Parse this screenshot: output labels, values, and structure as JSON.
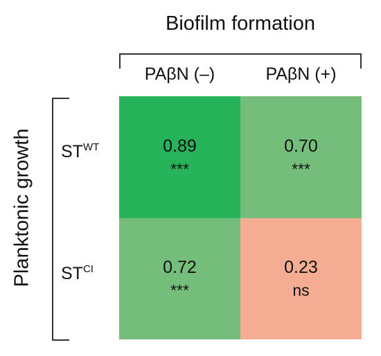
{
  "chart_data": {
    "type": "heatmap",
    "title": "Biofilm formation",
    "ylabel": "Planktonic growth",
    "columns": [
      "PAβN (–)",
      "PAβN (+)"
    ],
    "rows": [
      {
        "base": "ST",
        "sup": "WT"
      },
      {
        "base": "ST",
        "sup": "CI"
      }
    ],
    "values": [
      [
        0.89,
        0.7
      ],
      [
        0.72,
        0.23
      ]
    ],
    "value_labels": [
      [
        "0.89",
        "0.70"
      ],
      [
        "0.72",
        "0.23"
      ]
    ],
    "significance": [
      [
        "***",
        "***"
      ],
      [
        "***",
        "ns"
      ]
    ],
    "colors": [
      [
        "#27b35a",
        "#74bd7a"
      ],
      [
        "#74bd7a",
        "#f4ad93"
      ]
    ]
  }
}
